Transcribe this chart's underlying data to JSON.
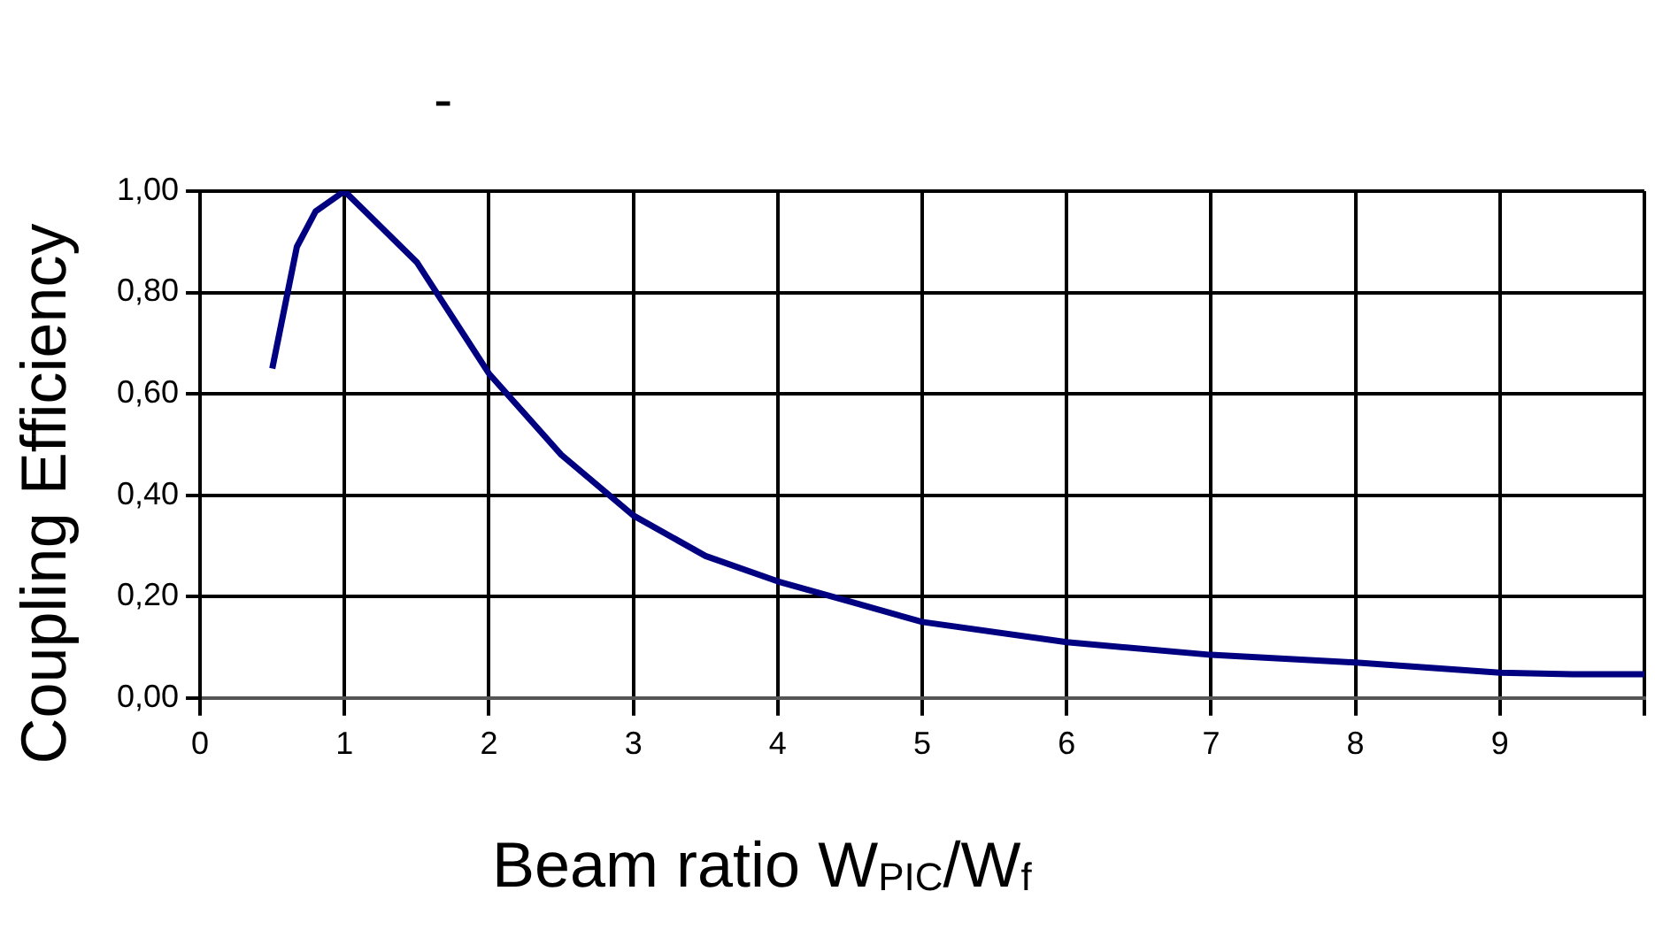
{
  "chart_data": {
    "type": "line",
    "title": "-",
    "xlabel": "Beam ratio W$_{PIC}$/W$_{f}$",
    "ylabel": "Coupling Efficiency",
    "series": [
      {
        "color": "#000080",
        "x": [
          0.5,
          0.67,
          0.8,
          1,
          1.5,
          2,
          2.5,
          3,
          3.5,
          4,
          4.5,
          5,
          6,
          7,
          8,
          9,
          9.5,
          10
        ],
        "values": [
          0.65,
          0.89,
          0.96,
          1.0,
          0.86,
          0.64,
          0.48,
          0.36,
          0.28,
          0.23,
          0.19,
          0.15,
          0.11,
          0.085,
          0.07,
          0.05,
          0.047,
          0.047
        ]
      }
    ],
    "xlim": [
      0,
      10
    ],
    "xticks": [
      0,
      1,
      2,
      3,
      4,
      5,
      6,
      7,
      8,
      9,
      {
        "value": 10,
        "label": null
      }
    ],
    "ylim": [
      0,
      1
    ],
    "yticks": [
      {
        "value": 0,
        "label": "0,00"
      },
      {
        "value": 0.2,
        "label": "0,20"
      },
      {
        "value": 0.4,
        "label": "0,40"
      },
      {
        "value": 0.6,
        "label": "0,60"
      },
      {
        "value": 0.8,
        "label": "0,80"
      },
      {
        "value": 1,
        "label": "1,00"
      }
    ],
    "grid": true,
    "legend": false,
    "marker": "none",
    "line_style": "solid"
  }
}
